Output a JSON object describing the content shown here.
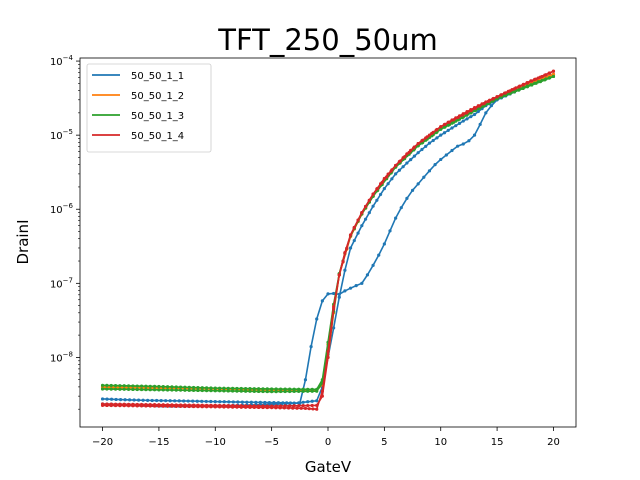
{
  "chart_data": {
    "type": "line",
    "title": "TFT_250_50um",
    "xlabel": "GateV",
    "ylabel": "DrainI",
    "xlim": [
      -22,
      22
    ],
    "ylim": [
      1.15e-09,
      0.00011
    ],
    "yscale": "log",
    "grid": false,
    "legend_position": "top-left",
    "x_ticks": [
      -20,
      -15,
      -10,
      -5,
      0,
      5,
      10,
      15,
      20
    ],
    "x_tick_labels": [
      "−20",
      "−15",
      "−10",
      "−5",
      "0",
      "5",
      "10",
      "15",
      "20"
    ],
    "y_ticks": [
      {
        "value": 1e-08,
        "base": "10",
        "exp": "−8"
      },
      {
        "value": 1e-07,
        "base": "10",
        "exp": "−7"
      },
      {
        "value": 1e-06,
        "base": "10",
        "exp": "−6"
      },
      {
        "value": 1e-05,
        "base": "10",
        "exp": "−5"
      },
      {
        "value": 0.0001,
        "base": "10",
        "exp": "−4"
      }
    ],
    "series": [
      {
        "name": "50_50_1_1",
        "color": "#1f77b4",
        "forward": [
          [
            -20,
            2.75e-09
          ],
          [
            -18,
            2.68e-09
          ],
          [
            -16,
            2.63e-09
          ],
          [
            -14,
            2.6e-09
          ],
          [
            -12,
            2.57e-09
          ],
          [
            -10,
            2.53e-09
          ],
          [
            -8,
            2.5e-09
          ],
          [
            -6,
            2.47e-09
          ],
          [
            -4,
            2.44e-09
          ],
          [
            -3,
            2.42e-09
          ],
          [
            -2.5,
            2.4e-09
          ],
          [
            -2,
            5e-09
          ],
          [
            -1.5,
            1.4e-08
          ],
          [
            -1,
            3.3e-08
          ],
          [
            -0.5,
            5.8e-08
          ],
          [
            0,
            7.2e-08
          ],
          [
            0.5,
            7.3e-08
          ],
          [
            1,
            7.1e-08
          ],
          [
            1.5,
            7.9e-08
          ],
          [
            2,
            8.6e-08
          ],
          [
            2.5,
            9.3e-08
          ],
          [
            3,
            1e-07
          ],
          [
            3.5,
            1.3e-07
          ],
          [
            4,
            1.75e-07
          ],
          [
            4.5,
            2.4e-07
          ],
          [
            5,
            3.4e-07
          ],
          [
            5.5,
            5.1e-07
          ],
          [
            6,
            7.6e-07
          ],
          [
            6.5,
            1.05e-06
          ],
          [
            7,
            1.4e-06
          ],
          [
            7.5,
            1.8e-06
          ],
          [
            8,
            2.2e-06
          ],
          [
            8.5,
            2.7e-06
          ],
          [
            9,
            3.3e-06
          ],
          [
            9.5,
            4e-06
          ],
          [
            10,
            4.7e-06
          ],
          [
            10.5,
            5.4e-06
          ],
          [
            11,
            6.2e-06
          ],
          [
            11.5,
            7.1e-06
          ],
          [
            12,
            7.6e-06
          ],
          [
            12.5,
            8.4e-06
          ],
          [
            13,
            1e-05
          ],
          [
            13.5,
            1.4e-05
          ],
          [
            14,
            2e-05
          ],
          [
            14.5,
            2.5e-05
          ],
          [
            15,
            3e-05
          ],
          [
            16,
            3.7e-05
          ],
          [
            17,
            4.4e-05
          ],
          [
            18,
            5.2e-05
          ],
          [
            19,
            6e-05
          ],
          [
            20,
            6.6e-05
          ]
        ],
        "reverse": [
          [
            20,
            6.6e-05
          ],
          [
            15,
            3e-05
          ],
          [
            14,
            2.5e-05
          ],
          [
            13,
            1.9e-05
          ],
          [
            12,
            1.55e-05
          ],
          [
            11,
            1.25e-05
          ],
          [
            10,
            1e-05
          ],
          [
            9,
            7.8e-06
          ],
          [
            8,
            5.8e-06
          ],
          [
            7,
            4.2e-06
          ],
          [
            6,
            3e-06
          ],
          [
            5,
            1.9e-06
          ],
          [
            4,
            1.1e-06
          ],
          [
            3,
            6e-07
          ],
          [
            2,
            3e-07
          ],
          [
            1.5,
            1.5e-07
          ],
          [
            1,
            6.5e-08
          ],
          [
            0.5,
            2.5e-08
          ],
          [
            0,
            1e-08
          ],
          [
            -0.5,
            4e-09
          ],
          [
            -1,
            2.6e-09
          ],
          [
            -3,
            2.4e-09
          ],
          [
            -6,
            2.3e-09
          ],
          [
            -10,
            2.2e-09
          ],
          [
            -14,
            2.2e-09
          ],
          [
            -18,
            2.3e-09
          ],
          [
            -20,
            2.35e-09
          ]
        ]
      },
      {
        "name": "50_50_1_2",
        "color": "#ff7f0e",
        "forward": [
          [
            -20,
            4.1e-09
          ],
          [
            -15,
            3.95e-09
          ],
          [
            -10,
            3.8e-09
          ],
          [
            -5,
            3.7e-09
          ],
          [
            -1,
            3.65e-09
          ],
          [
            -0.5,
            4.5e-09
          ],
          [
            0,
            1.5e-08
          ],
          [
            0.5,
            5e-08
          ],
          [
            1,
            1.3e-07
          ],
          [
            1.5,
            2.5e-07
          ],
          [
            2,
            4.3e-07
          ],
          [
            3,
            8.6e-07
          ],
          [
            4,
            1.5e-06
          ],
          [
            5,
            2.5e-06
          ],
          [
            6,
            3.8e-06
          ],
          [
            7,
            5.5e-06
          ],
          [
            8,
            7.5e-06
          ],
          [
            9,
            9.8e-06
          ],
          [
            10,
            1.25e-05
          ],
          [
            11,
            1.5e-05
          ],
          [
            12,
            1.8e-05
          ],
          [
            13,
            2.2e-05
          ],
          [
            14,
            2.7e-05
          ],
          [
            15,
            3.2e-05
          ],
          [
            16,
            3.8e-05
          ],
          [
            17,
            4.4e-05
          ],
          [
            18,
            5e-05
          ],
          [
            19,
            5.7e-05
          ],
          [
            20,
            6.6e-05
          ]
        ],
        "reverse": [
          [
            20,
            6.6e-05
          ],
          [
            15,
            3.2e-05
          ],
          [
            10,
            1.25e-05
          ],
          [
            8,
            7.5e-06
          ],
          [
            6,
            3.8e-06
          ],
          [
            4,
            1.5e-06
          ],
          [
            3,
            8.6e-07
          ],
          [
            2,
            4.3e-07
          ],
          [
            1,
            1.3e-07
          ],
          [
            0.5,
            4e-08
          ],
          [
            0,
            1e-08
          ],
          [
            -0.5,
            4.3e-09
          ],
          [
            -1,
            3.6e-09
          ],
          [
            -5,
            3.6e-09
          ],
          [
            -10,
            3.75e-09
          ],
          [
            -15,
            3.85e-09
          ],
          [
            -20,
            3.9e-09
          ]
        ]
      },
      {
        "name": "50_50_1_3",
        "color": "#2ca02c",
        "forward": [
          [
            -20,
            4.2e-09
          ],
          [
            -15,
            4.05e-09
          ],
          [
            -10,
            3.85e-09
          ],
          [
            -5,
            3.75e-09
          ],
          [
            -1,
            3.7e-09
          ],
          [
            -0.5,
            5e-09
          ],
          [
            0,
            1.6e-08
          ],
          [
            0.5,
            5.2e-08
          ],
          [
            1,
            1.35e-07
          ],
          [
            1.5,
            2.55e-07
          ],
          [
            2,
            4.4e-07
          ],
          [
            3,
            8.7e-07
          ],
          [
            4,
            1.5e-06
          ],
          [
            5,
            2.5e-06
          ],
          [
            6,
            3.7e-06
          ],
          [
            7,
            5.3e-06
          ],
          [
            8,
            7.2e-06
          ],
          [
            9,
            9.3e-06
          ],
          [
            10,
            1.2e-05
          ],
          [
            11,
            1.45e-05
          ],
          [
            12,
            1.75e-05
          ],
          [
            13,
            2.15e-05
          ],
          [
            14,
            2.6e-05
          ],
          [
            15,
            3.1e-05
          ],
          [
            16,
            3.65e-05
          ],
          [
            17,
            4.2e-05
          ],
          [
            18,
            4.8e-05
          ],
          [
            19,
            5.5e-05
          ],
          [
            20,
            6.2e-05
          ]
        ],
        "reverse": [
          [
            20,
            6.2e-05
          ],
          [
            15,
            3.1e-05
          ],
          [
            10,
            1.2e-05
          ],
          [
            8,
            7.2e-06
          ],
          [
            6,
            3.7e-06
          ],
          [
            4,
            1.5e-06
          ],
          [
            3,
            8.7e-07
          ],
          [
            2,
            4.4e-07
          ],
          [
            1,
            1.35e-07
          ],
          [
            0.5,
            4.2e-08
          ],
          [
            0,
            1.1e-08
          ],
          [
            -0.5,
            4.5e-09
          ],
          [
            -1,
            3.5e-09
          ],
          [
            -5,
            3.45e-09
          ],
          [
            -10,
            3.55e-09
          ],
          [
            -15,
            3.65e-09
          ],
          [
            -20,
            3.75e-09
          ]
        ]
      },
      {
        "name": "50_50_1_4",
        "color": "#d62728",
        "forward": [
          [
            -20,
            2.25e-09
          ],
          [
            -15,
            2.2e-09
          ],
          [
            -10,
            2.15e-09
          ],
          [
            -5,
            2.1e-09
          ],
          [
            -2,
            2.05e-09
          ],
          [
            -1,
            2e-09
          ],
          [
            -0.5,
            3.5e-09
          ],
          [
            0,
            1.2e-08
          ],
          [
            0.5,
            4.8e-08
          ],
          [
            1,
            1.3e-07
          ],
          [
            1.5,
            2.6e-07
          ],
          [
            2,
            4.5e-07
          ],
          [
            3,
            9e-07
          ],
          [
            4,
            1.6e-06
          ],
          [
            5,
            2.6e-06
          ],
          [
            6,
            3.9e-06
          ],
          [
            7,
            5.6e-06
          ],
          [
            8,
            7.7e-06
          ],
          [
            9,
            1e-05
          ],
          [
            10,
            1.3e-05
          ],
          [
            11,
            1.6e-05
          ],
          [
            12,
            1.95e-05
          ],
          [
            13,
            2.35e-05
          ],
          [
            14,
            2.8e-05
          ],
          [
            15,
            3.3e-05
          ],
          [
            16,
            3.9e-05
          ],
          [
            17,
            4.6e-05
          ],
          [
            18,
            5.4e-05
          ],
          [
            19,
            6.2e-05
          ],
          [
            20,
            7.3e-05
          ]
        ],
        "reverse": [
          [
            20,
            7.3e-05
          ],
          [
            15,
            3.3e-05
          ],
          [
            10,
            1.3e-05
          ],
          [
            8,
            7.7e-06
          ],
          [
            6,
            3.9e-06
          ],
          [
            4,
            1.6e-06
          ],
          [
            3,
            9e-07
          ],
          [
            2,
            4.5e-07
          ],
          [
            1,
            1.3e-07
          ],
          [
            0.5,
            4.5e-08
          ],
          [
            0,
            1e-08
          ],
          [
            -0.5,
            3e-09
          ],
          [
            -1,
            2.25e-09
          ],
          [
            -5,
            2.2e-09
          ],
          [
            -10,
            2.25e-09
          ],
          [
            -15,
            2.3e-09
          ],
          [
            -20,
            2.35e-09
          ]
        ]
      }
    ]
  }
}
